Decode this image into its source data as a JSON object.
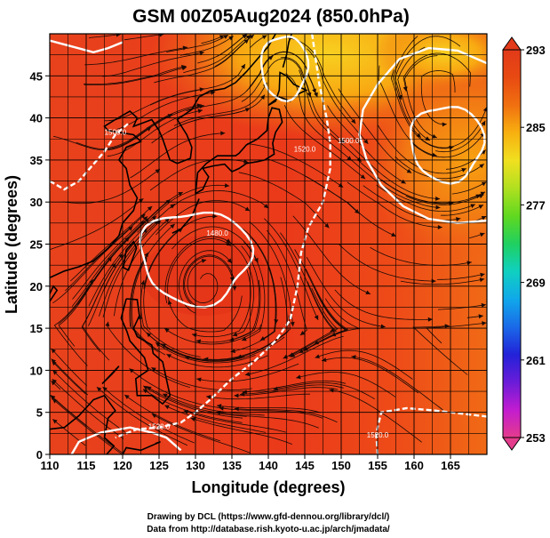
{
  "chart_data": {
    "type": "heatmap",
    "title": "GSM 00Z05Aug2024 (850.0hPa)",
    "xlabel": "Longitude (degrees)",
    "ylabel": "Latitude (degrees)",
    "xlim": [
      110,
      170
    ],
    "ylim": [
      0,
      50
    ],
    "x_ticks": [
      "110",
      "115",
      "120",
      "125",
      "130",
      "135",
      "140",
      "145",
      "150",
      "155",
      "160",
      "165"
    ],
    "y_ticks": [
      "0",
      "5",
      "10",
      "15",
      "20",
      "25",
      "30",
      "35",
      "40",
      "45"
    ],
    "colorbar": {
      "min": 253,
      "max": 293,
      "tick_labels": [
        "293",
        "285",
        "277",
        "269",
        "261",
        "253"
      ],
      "tick_values": [
        293,
        285,
        277,
        269,
        261,
        253
      ],
      "colors": [
        "#e43c8c",
        "#c21cd0",
        "#6a1cd8",
        "#2222d8",
        "#1a6ae8",
        "#10a8ea",
        "#10d0c0",
        "#20d060",
        "#60d820",
        "#b0e020",
        "#f0e020",
        "#f8b010",
        "#f07010",
        "#e84a12",
        "#e23a1a"
      ]
    },
    "contour_labels": [
      {
        "text": "1500.0",
        "lon": 119,
        "lat": 38
      },
      {
        "text": "1520.0",
        "lon": 145,
        "lat": 36
      },
      {
        "text": "1500.0",
        "lon": 151,
        "lat": 37
      },
      {
        "text": "1480.0",
        "lon": 133,
        "lat": 26
      },
      {
        "text": "1520.0",
        "lon": 125,
        "lat": 3
      },
      {
        "text": "1520.0",
        "lon": 155,
        "lat": 2
      }
    ],
    "field_colors": {
      "warm": "#ec3a1c",
      "hot": "#e63018",
      "mid": "#f05a18",
      "cool": "#f88a10",
      "yellow": "#f8c820"
    },
    "grid": true
  },
  "credits": {
    "line1": "Drawing by DCL (https://www.gfd-dennou.org/library/dcl/)",
    "line2": "Data from http://database.rish.kyoto-u.ac.jp/arch/jmadata/"
  }
}
